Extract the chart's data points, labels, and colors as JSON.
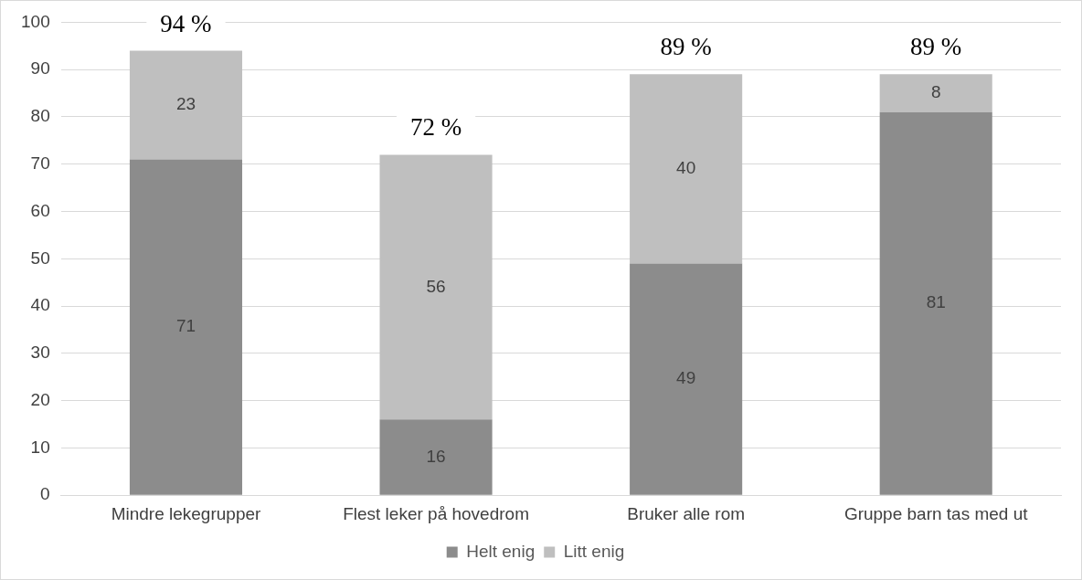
{
  "chart_data": {
    "type": "bar",
    "stacked": true,
    "categories": [
      "Mindre lekegrupper",
      "Flest leker på hovedrom",
      "Bruker alle rom",
      "Gruppe barn tas med ut"
    ],
    "series": [
      {
        "name": "Helt enig",
        "color": "#8c8c8c",
        "values": [
          71,
          16,
          49,
          81
        ]
      },
      {
        "name": "Litt enig",
        "color": "#bfbfbf",
        "values": [
          23,
          56,
          40,
          8
        ]
      }
    ],
    "ylim": [
      0,
      100
    ],
    "yticks": [
      0,
      10,
      20,
      30,
      40,
      50,
      60,
      70,
      80,
      90,
      100
    ],
    "grid": "y",
    "legend": "bottom",
    "data_labels": true,
    "totals": [
      "94 %",
      "72 %",
      "89 %",
      "89 %"
    ]
  }
}
